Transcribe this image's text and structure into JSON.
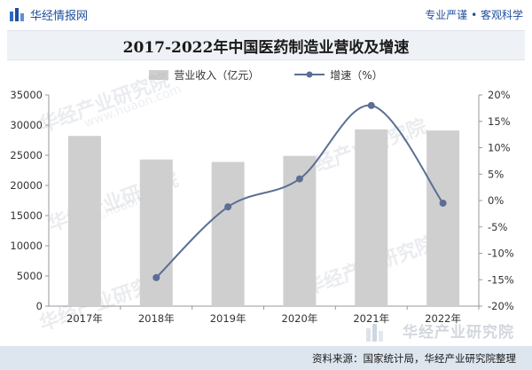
{
  "header": {
    "brand": "华经情报网",
    "slogan": "专业严谨 • 客观科学"
  },
  "watermark": {
    "text": "华经产业研究院",
    "url": "www.huaon.com"
  },
  "footer": {
    "source": "资料来源：国家统计局，华经产业研究院整理"
  },
  "colors": {
    "bar": "#cfcfcf",
    "line": "#5b6f94",
    "brand": "#1f4e9c"
  },
  "chart_data": {
    "type": "bar",
    "title": "2017-2022年中国医药制造业营收及增速",
    "categories": [
      "2017年",
      "2018年",
      "2019年",
      "2020年",
      "2021年",
      "2022年"
    ],
    "series": [
      {
        "name": "营业收入（亿元）",
        "type": "bar",
        "axis": "left",
        "values": [
          28200,
          24300,
          23900,
          24900,
          29300,
          29100
        ]
      },
      {
        "name": "增速（%）",
        "type": "line",
        "axis": "right",
        "values": [
          null,
          -14.6,
          -1.2,
          4.1,
          18,
          -0.5
        ]
      }
    ],
    "y_left": {
      "min": 0,
      "max": 35000,
      "ticks": [
        "0",
        "5000",
        "10000",
        "15000",
        "20000",
        "25000",
        "30000",
        "35000"
      ]
    },
    "y_right": {
      "min": -20,
      "max": 20,
      "ticks": [
        "-20%",
        "-15%",
        "-10%",
        "-5%",
        "0%",
        "5%",
        "10%",
        "15%",
        "20%"
      ]
    },
    "grid": false,
    "legend_position": "top-center"
  }
}
